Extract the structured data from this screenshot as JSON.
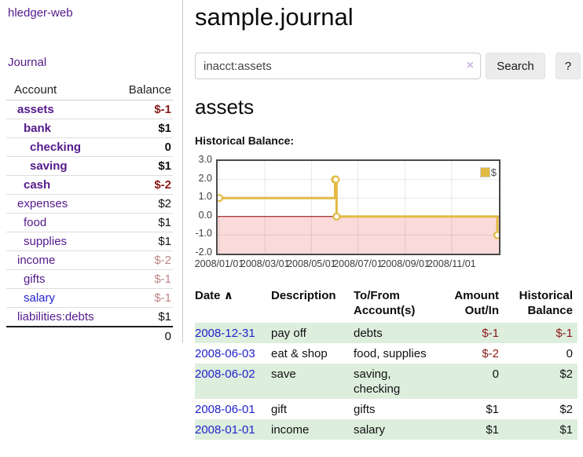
{
  "app": {
    "title": "hledger-web"
  },
  "sidebar": {
    "journal_link": "Journal",
    "accounts_table": {
      "account_header": "Account",
      "balance_header": "Balance",
      "rows": [
        {
          "account": "assets",
          "balance": "$-1",
          "indent": 1,
          "bold": true,
          "balance_color": "negative-strong",
          "link_color": "purple"
        },
        {
          "account": "bank",
          "balance": "$1",
          "indent": 2,
          "bold": true,
          "balance_color": "default",
          "link_color": "purple"
        },
        {
          "account": "checking",
          "balance": "0",
          "indent": 3,
          "bold": true,
          "balance_color": "default",
          "link_color": "purple"
        },
        {
          "account": "saving",
          "balance": "$1",
          "indent": 3,
          "bold": true,
          "balance_color": "default",
          "link_color": "purple"
        },
        {
          "account": "cash",
          "balance": "$-2",
          "indent": 2,
          "bold": true,
          "balance_color": "negative-strong",
          "link_color": "purple"
        },
        {
          "account": "expenses",
          "balance": "$2",
          "indent": 1,
          "bold": false,
          "balance_color": "default",
          "link_color": "purple"
        },
        {
          "account": "food",
          "balance": "$1",
          "indent": 2,
          "bold": false,
          "balance_color": "default",
          "link_color": "purple"
        },
        {
          "account": "supplies",
          "balance": "$1",
          "indent": 2,
          "bold": false,
          "balance_color": "default",
          "link_color": "purple"
        },
        {
          "account": "income",
          "balance": "$-2",
          "indent": 1,
          "bold": false,
          "balance_color": "negative-soft",
          "link_color": "purple"
        },
        {
          "account": "gifts",
          "balance": "$-1",
          "indent": 2,
          "bold": false,
          "balance_color": "negative-soft",
          "link_color": "purple"
        },
        {
          "account": "salary",
          "balance": "$-1",
          "indent": 2,
          "bold": false,
          "balance_color": "negative-soft",
          "link_color": "blue"
        },
        {
          "account": "liabilities:debts",
          "balance": "$1",
          "indent": 1,
          "bold": false,
          "balance_color": "default",
          "link_color": "purple"
        }
      ],
      "total": "0"
    }
  },
  "main": {
    "title": "sample.journal",
    "search": {
      "value": "inacct:assets",
      "clear_icon": "×",
      "button_label": "Search",
      "help_label": "?"
    },
    "account_heading": "assets",
    "chart_label": "Historical Balance:",
    "register_table": {
      "headers": {
        "date": "Date",
        "sort_icon": "∧",
        "description": "Description",
        "accounts": "To/From Account(s)",
        "amount": "Amount Out/In",
        "balance": "Historical Balance"
      },
      "rows": [
        {
          "date": "2008-12-31",
          "description": "pay off",
          "accounts": "debts",
          "amount": "$-1",
          "amount_color": "negative",
          "balance": "$-1",
          "balance_color": "negative"
        },
        {
          "date": "2008-06-03",
          "description": "eat & shop",
          "accounts": "food, supplies",
          "amount": "$-2",
          "amount_color": "negative",
          "balance": "0",
          "balance_color": "default"
        },
        {
          "date": "2008-06-02",
          "description": "save",
          "accounts": "saving, checking",
          "amount": "0",
          "amount_color": "default",
          "balance": "$2",
          "balance_color": "default"
        },
        {
          "date": "2008-06-01",
          "description": "gift",
          "accounts": "gifts",
          "amount": "$1",
          "amount_color": "default",
          "balance": "$2",
          "balance_color": "default"
        },
        {
          "date": "2008-01-01",
          "description": "income",
          "accounts": "salary",
          "amount": "$1",
          "amount_color": "default",
          "balance": "$1",
          "balance_color": "default"
        }
      ]
    }
  },
  "chart_data": {
    "type": "line",
    "step": true,
    "title": "Historical Balance",
    "series": [
      {
        "name": "$",
        "color": "#e2ba42",
        "points": [
          [
            "2008-01-01",
            1
          ],
          [
            "2008-06-01",
            2
          ],
          [
            "2008-06-02",
            2
          ],
          [
            "2008-06-03",
            0
          ],
          [
            "2008-12-31",
            -1
          ]
        ]
      }
    ],
    "x_range": [
      "2008-01-01",
      "2008-12-31"
    ],
    "x_tick_labels": [
      "2008/01/01",
      "2008/03/01",
      "2008/05/01",
      "2008/07/01",
      "2008/09/01",
      "2008/11/01"
    ],
    "y_ticks": [
      3.0,
      2.0,
      1.0,
      0.0,
      -1.0,
      -2.0
    ],
    "ylim": [
      -2,
      3
    ],
    "grid": true,
    "legend_position": "top-right",
    "colors": {
      "negative_region": "#fbdada",
      "zero_line": "#8b0000",
      "grid_line": "rgba(0,0,0,0.09)",
      "marker_fill": "#ffffff",
      "border": "#4a4a4a"
    }
  }
}
